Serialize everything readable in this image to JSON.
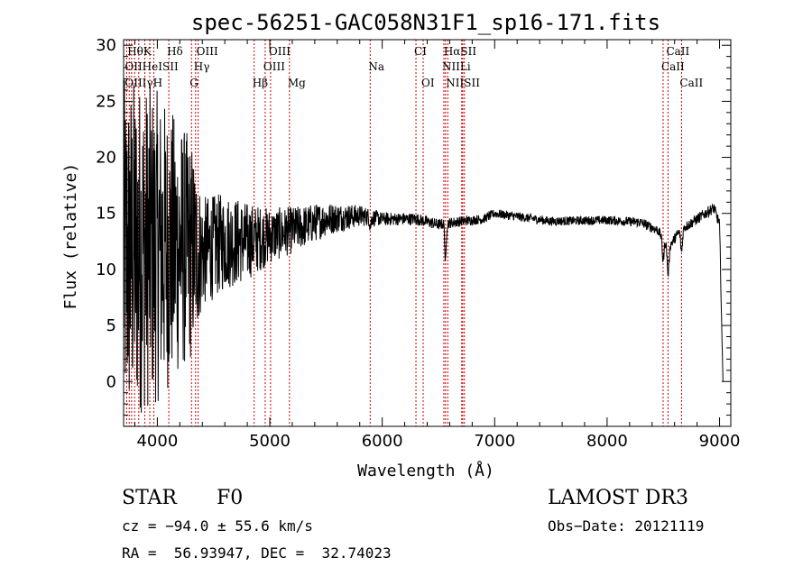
{
  "chart_data": {
    "type": "line",
    "title": "spec-56251-GAC058N31F1_sp16-171.fits",
    "xlabel": "Wavelength (Å)",
    "ylabel": "Flux (relative)",
    "xlim": [
      3700,
      9100
    ],
    "ylim": [
      -4,
      30.5
    ],
    "xticks": [
      4000,
      5000,
      6000,
      7000,
      8000,
      9000
    ],
    "xtick_labels": [
      "4000",
      "5000",
      "6000",
      "7000",
      "8000",
      "9000"
    ],
    "yticks": [
      0,
      5,
      10,
      15,
      20,
      25,
      30
    ],
    "ytick_labels": [
      "0",
      "5",
      "10",
      "15",
      "20",
      "25",
      "30"
    ],
    "continuum_anchors": [
      [
        3700,
        11
      ],
      [
        3800,
        12
      ],
      [
        3900,
        12
      ],
      [
        4000,
        12
      ],
      [
        4200,
        12
      ],
      [
        4400,
        11.5
      ],
      [
        4600,
        12.5
      ],
      [
        4800,
        12.5
      ],
      [
        5000,
        13
      ],
      [
        5200,
        13.5
      ],
      [
        5500,
        14.5
      ],
      [
        5800,
        14.8
      ],
      [
        6000,
        14.5
      ],
      [
        6300,
        14.5
      ],
      [
        6500,
        14
      ],
      [
        6700,
        14.3
      ],
      [
        6900,
        14.5
      ],
      [
        7000,
        15
      ],
      [
        7500,
        14.3
      ],
      [
        8000,
        14.4
      ],
      [
        8300,
        14.2
      ],
      [
        8450,
        13.5
      ],
      [
        8550,
        12
      ],
      [
        8650,
        13.5
      ],
      [
        8800,
        14.5
      ],
      [
        8950,
        15.5
      ],
      [
        9000,
        14
      ],
      [
        9030,
        0
      ]
    ],
    "absorption_features": [
      {
        "center": 6563,
        "depth": 3.5,
        "width": 6
      },
      {
        "center": 8498,
        "depth": 2,
        "width": 8
      },
      {
        "center": 8542,
        "depth": 2.5,
        "width": 8
      },
      {
        "center": 8662,
        "depth": 2,
        "width": 8
      },
      {
        "center": 5895,
        "depth": 0.8,
        "width": 6
      }
    ],
    "noise_profile": [
      [
        3700,
        16
      ],
      [
        4000,
        14
      ],
      [
        4300,
        10
      ],
      [
        4400,
        5
      ],
      [
        4700,
        4
      ],
      [
        5000,
        2.5
      ],
      [
        5500,
        1.5
      ],
      [
        6000,
        0.6
      ],
      [
        6500,
        0.5
      ],
      [
        7000,
        0.4
      ],
      [
        8000,
        0.4
      ],
      [
        9000,
        0.5
      ]
    ],
    "line_markers": [
      {
        "label": "HθK",
        "wavelength": 3750,
        "row": 0
      },
      {
        "label": "Hδ",
        "wavelength": 4102,
        "row": 0
      },
      {
        "label": "OIII",
        "wavelength": 4363,
        "row": 0
      },
      {
        "label": "OIII",
        "wavelength": 5007,
        "row": 0
      },
      {
        "label": "CI",
        "wavelength": 6300,
        "row": 0
      },
      {
        "label": "HαSII",
        "wavelength": 6563,
        "row": 0
      },
      {
        "label": "CaII",
        "wavelength": 8542,
        "row": 0
      },
      {
        "label": "OIIHeISII",
        "wavelength": 3727,
        "row": 1
      },
      {
        "label": "Hγ",
        "wavelength": 4340,
        "row": 1
      },
      {
        "label": "OIII",
        "wavelength": 4959,
        "row": 1
      },
      {
        "label": "Na",
        "wavelength": 5893,
        "row": 1
      },
      {
        "label": "NIILi",
        "wavelength": 6548,
        "row": 1
      },
      {
        "label": "CaII",
        "wavelength": 8498,
        "row": 1
      },
      {
        "label": "OIIIγH",
        "wavelength": 3727,
        "row": 2
      },
      {
        "label": "G",
        "wavelength": 4304,
        "row": 2
      },
      {
        "label": "Hβ",
        "wavelength": 4861,
        "row": 2
      },
      {
        "label": "Mg",
        "wavelength": 5175,
        "row": 2
      },
      {
        "label": "OI",
        "wavelength": 6364,
        "row": 2
      },
      {
        "label": "NIISII",
        "wavelength": 6583,
        "row": 2
      },
      {
        "label": "CaII",
        "wavelength": 8662,
        "row": 2
      }
    ],
    "marker_line_wavelengths": [
      3727,
      3750,
      3771,
      3798,
      3835,
      3889,
      3933,
      3969,
      4102,
      4304,
      4340,
      4363,
      4861,
      4959,
      5007,
      5175,
      5893,
      6300,
      6364,
      6548,
      6563,
      6583,
      6707,
      6716,
      6731,
      8498,
      8542,
      8662
    ]
  },
  "info": {
    "obj_class": "STAR",
    "subclass": "F0",
    "survey": "LAMOST DR3",
    "cz": "cz = −94.0 ± 55.6 km/s",
    "obs_date": "Obs−Date: 20121119",
    "radec": "RA =  56.93947, DEC =  32.74023"
  },
  "colors": {
    "spectrum": "#000000",
    "marker_line": "#cc0000",
    "axis": "#000000"
  }
}
